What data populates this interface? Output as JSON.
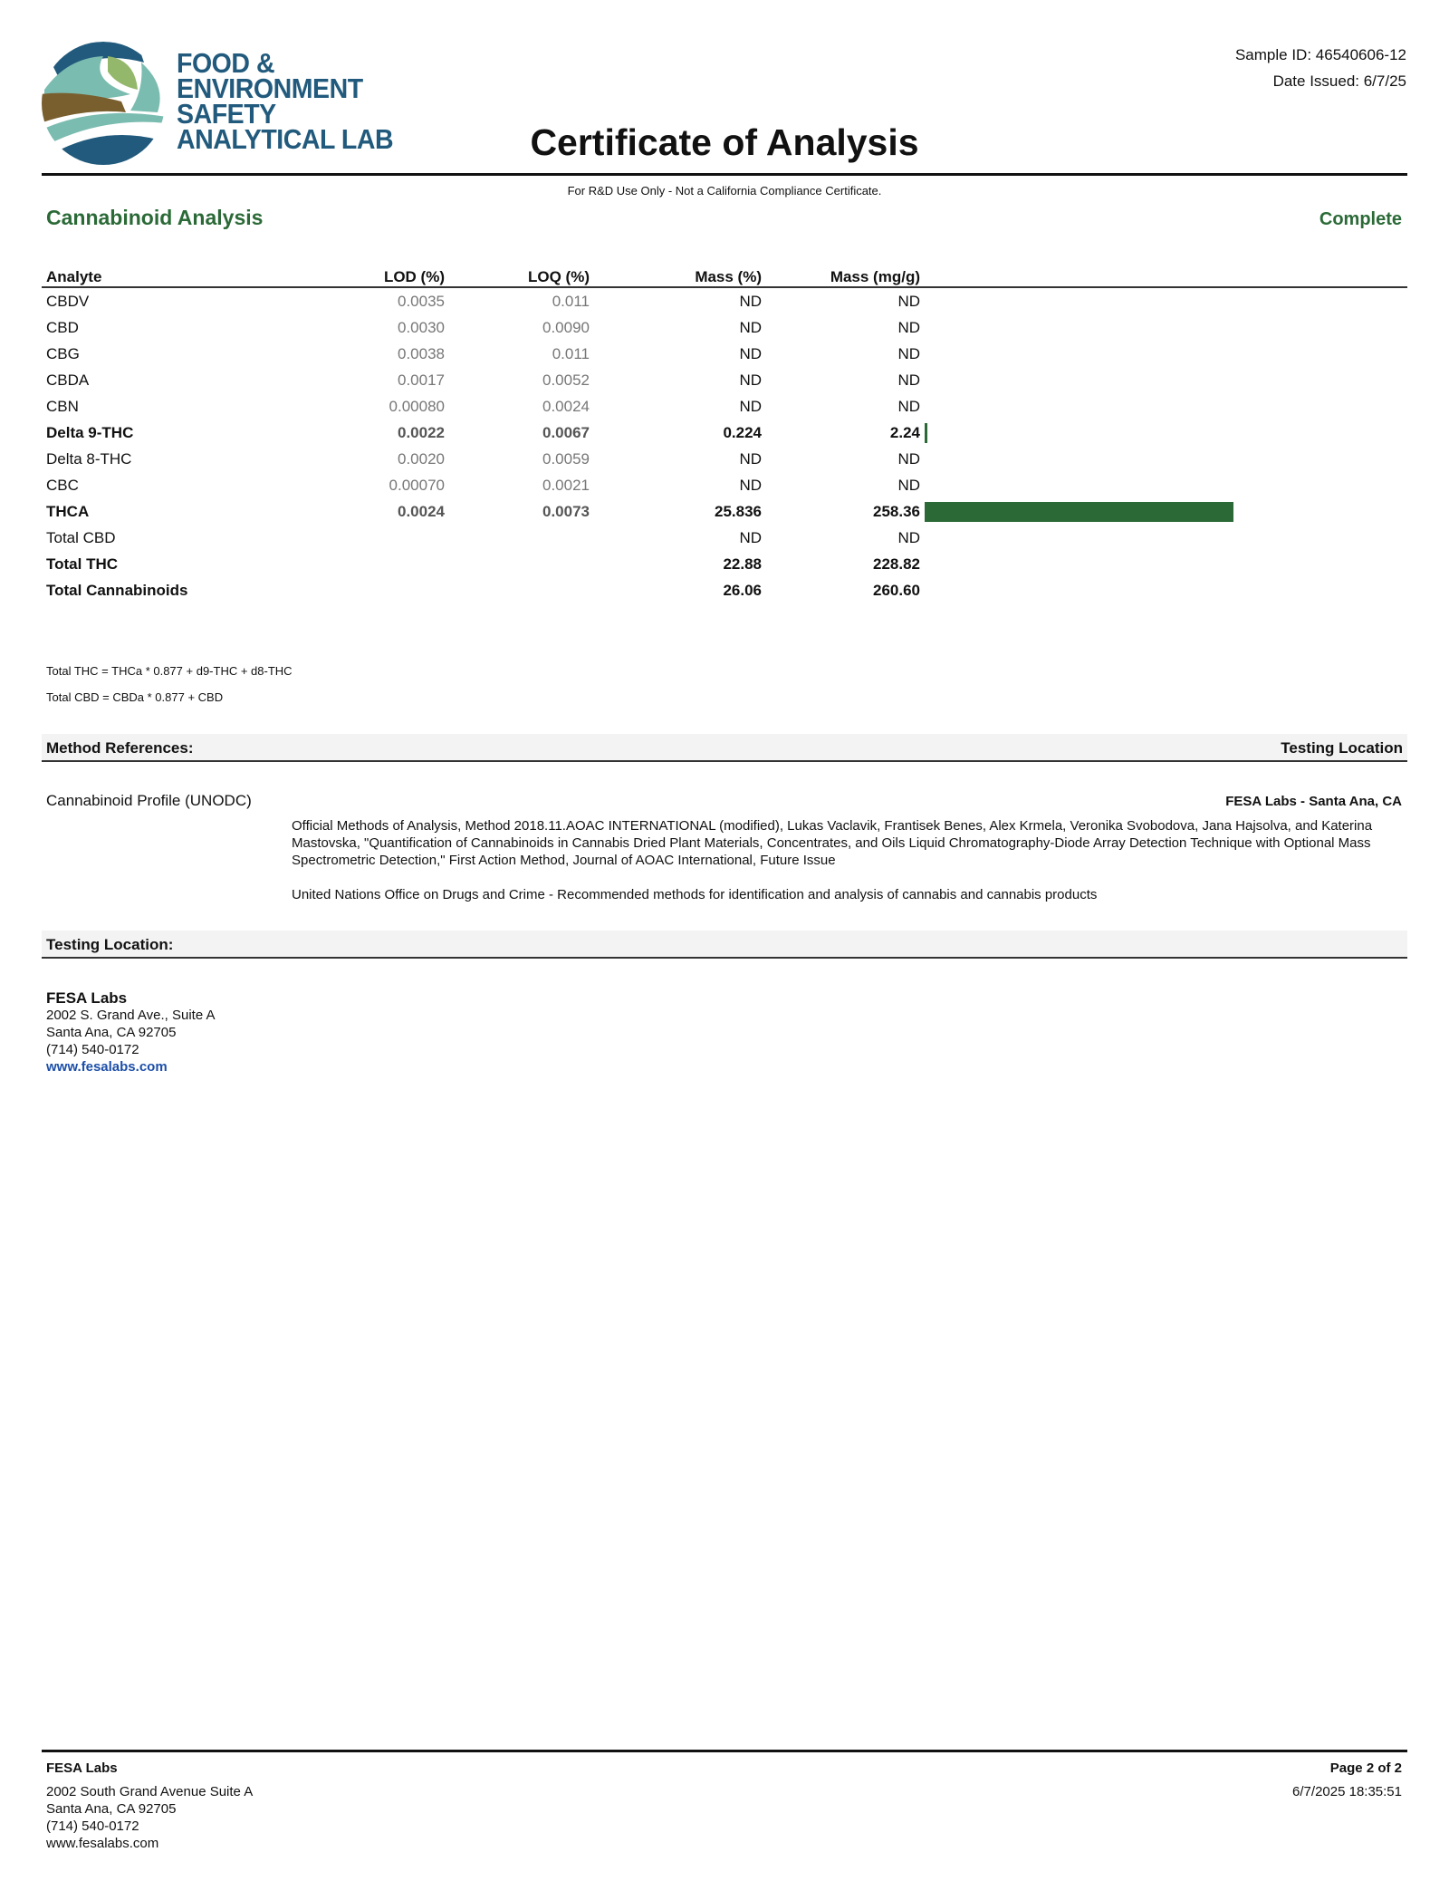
{
  "header": {
    "logo_text": [
      "FOOD &",
      "ENVIRONMENT",
      "SAFETY",
      "ANALYTICAL LAB"
    ],
    "sample_id": "Sample ID: 46540606-12",
    "date_issued": "Date Issued: 6/7/25",
    "title": "Certificate of Analysis",
    "disclaimer": "For R&D Use Only - Not a California Compliance Certificate."
  },
  "section": {
    "title": "Cannabinoid Analysis",
    "status": "Complete",
    "accent_color": "#2b6a37"
  },
  "table": {
    "columns": [
      "Analyte",
      "LOD (%)",
      "LOQ (%)",
      "Mass (%)",
      "Mass (mg/g)"
    ],
    "rows": [
      {
        "analyte": "CBDV",
        "lod": "0.0035",
        "loq": "0.011",
        "mass_pct": "ND",
        "mass_mgg": "ND",
        "bold": false,
        "bar": 0
      },
      {
        "analyte": "CBD",
        "lod": "0.0030",
        "loq": "0.0090",
        "mass_pct": "ND",
        "mass_mgg": "ND",
        "bold": false,
        "bar": 0
      },
      {
        "analyte": "CBG",
        "lod": "0.0038",
        "loq": "0.011",
        "mass_pct": "ND",
        "mass_mgg": "ND",
        "bold": false,
        "bar": 0
      },
      {
        "analyte": "CBDA",
        "lod": "0.0017",
        "loq": "0.0052",
        "mass_pct": "ND",
        "mass_mgg": "ND",
        "bold": false,
        "bar": 0
      },
      {
        "analyte": "CBN",
        "lod": "0.00080",
        "loq": "0.0024",
        "mass_pct": "ND",
        "mass_mgg": "ND",
        "bold": false,
        "bar": 0
      },
      {
        "analyte": "Delta 9-THC",
        "lod": "0.0022",
        "loq": "0.0067",
        "mass_pct": "0.224",
        "mass_mgg": "2.24",
        "bold": true,
        "bar": 2.24
      },
      {
        "analyte": "Delta 8-THC",
        "lod": "0.0020",
        "loq": "0.0059",
        "mass_pct": "ND",
        "mass_mgg": "ND",
        "bold": false,
        "bar": 0
      },
      {
        "analyte": "CBC",
        "lod": "0.00070",
        "loq": "0.0021",
        "mass_pct": "ND",
        "mass_mgg": "ND",
        "bold": false,
        "bar": 0
      },
      {
        "analyte": "THCA",
        "lod": "0.0024",
        "loq": "0.0073",
        "mass_pct": "25.836",
        "mass_mgg": "258.36",
        "bold": true,
        "bar": 258.36
      },
      {
        "analyte": "Total CBD",
        "lod": "",
        "loq": "",
        "mass_pct": "ND",
        "mass_mgg": "ND",
        "bold": false,
        "bar": 0
      },
      {
        "analyte": "Total THC",
        "lod": "",
        "loq": "",
        "mass_pct": "22.88",
        "mass_mgg": "228.82",
        "bold": true,
        "bar": 0
      },
      {
        "analyte": "Total Cannabinoids",
        "lod": "",
        "loq": "",
        "mass_pct": "26.06",
        "mass_mgg": "260.60",
        "bold": true,
        "bar": 0
      }
    ]
  },
  "formulas": [
    "Total THC = THCa * 0.877 + d9-THC + d8-THC",
    "Total CBD = CBDa * 0.877 + CBD"
  ],
  "methods": {
    "heading": "Method References:",
    "location_heading": "Testing Location",
    "profile": "Cannabinoid Profile (UNODC)",
    "location": "FESA Labs - Santa Ana, CA",
    "ref1": "Official Methods of Analysis, Method 2018.11.AOAC INTERNATIONAL (modified), Lukas Vaclavik, Frantisek Benes, Alex Krmela, Veronika Svobodova, Jana Hajsolva, and Katerina Mastovska, \"Quantification of Cannabinoids in Cannabis Dried Plant Materials, Concentrates, and Oils Liquid Chromatography-Diode Array Detection Technique with Optional Mass Spectrometric Detection,\" First Action Method, Journal of AOAC International, Future Issue",
    "ref2": "United Nations Office on Drugs and Crime - Recommended methods for identification and analysis of cannabis and cannabis products"
  },
  "testing_location": {
    "heading": "Testing Location:",
    "name": "FESA Labs",
    "address1": "2002 S. Grand Ave., Suite A",
    "address2": "Santa Ana, CA 92705",
    "phone": "(714) 540-0172",
    "website": "www.fesalabs.com"
  },
  "footer": {
    "name": "FESA Labs",
    "address1": "2002 South Grand Avenue Suite A",
    "address2": "Santa Ana, CA 92705",
    "phone": "(714) 540-0172",
    "website": "www.fesalabs.com",
    "page": "Page 2 of 2",
    "timestamp": "6/7/2025 18:35:51"
  }
}
